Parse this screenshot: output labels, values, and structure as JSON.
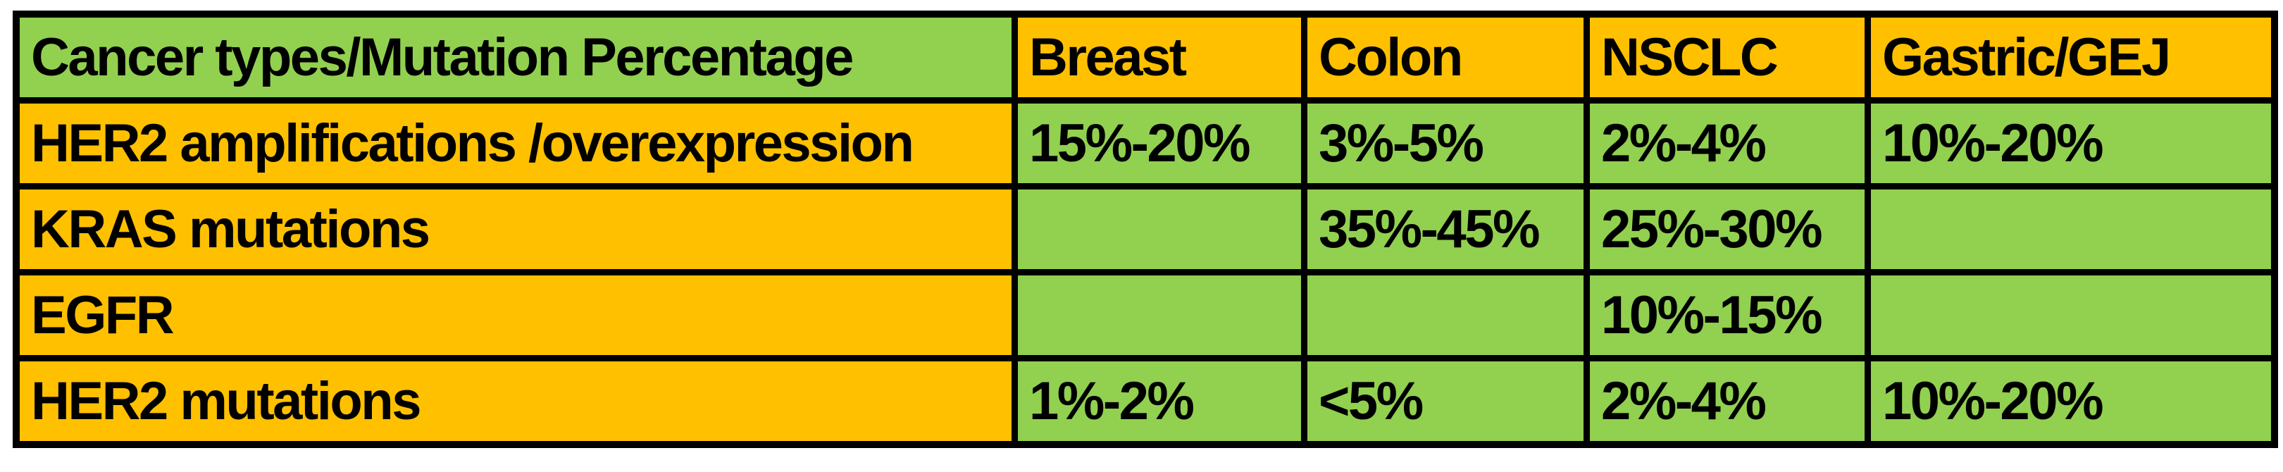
{
  "table": {
    "header": {
      "corner": "Cancer types/Mutation Percentage",
      "columns": [
        "Breast",
        "Colon",
        "NSCLC",
        "Gastric/GEJ"
      ]
    },
    "rows": [
      {
        "label": "HER2 amplifications /overexpression",
        "values": [
          "15%-20%",
          "3%-5%",
          "2%-4%",
          "10%-20%"
        ]
      },
      {
        "label": "KRAS mutations",
        "values": [
          "",
          "35%-45%",
          "25%-30%",
          ""
        ]
      },
      {
        "label": "EGFR",
        "values": [
          "",
          "",
          "10%-15%",
          ""
        ]
      },
      {
        "label": "HER2 mutations",
        "values": [
          "1%-2%",
          "<5%",
          "2%-4%",
          "10%-20%"
        ]
      }
    ],
    "colors": {
      "header_corner_bg": "#92D050",
      "header_columns_bg": "#FFC000",
      "row_label_bg": "#FFC000",
      "value_cell_bg": "#92D050",
      "border": "#000000",
      "text": "#000000",
      "page_background": "#FFFFFF"
    }
  },
  "chart_data": {
    "type": "table",
    "title": "Cancer types/Mutation Percentage",
    "columns": [
      "Cancer types/Mutation Percentage",
      "Breast",
      "Colon",
      "NSCLC",
      "Gastric/GEJ"
    ],
    "rows": [
      [
        "HER2 amplifications /overexpression",
        "15%-20%",
        "3%-5%",
        "2%-4%",
        "10%-20%"
      ],
      [
        "KRAS mutations",
        "",
        "35%-45%",
        "25%-30%",
        ""
      ],
      [
        "EGFR",
        "",
        "",
        "10%-15%",
        ""
      ],
      [
        "HER2 mutations",
        "1%-2%",
        "<5%",
        "2%-4%",
        "10%-20%"
      ]
    ],
    "layout_hints": {
      "header_row_colors": [
        "green",
        "orange",
        "orange",
        "orange",
        "orange"
      ],
      "body_row_colors": [
        "orange-label",
        "green-values"
      ],
      "grid": "thick black borders",
      "text_align": "left",
      "font_weight": "bold"
    }
  }
}
